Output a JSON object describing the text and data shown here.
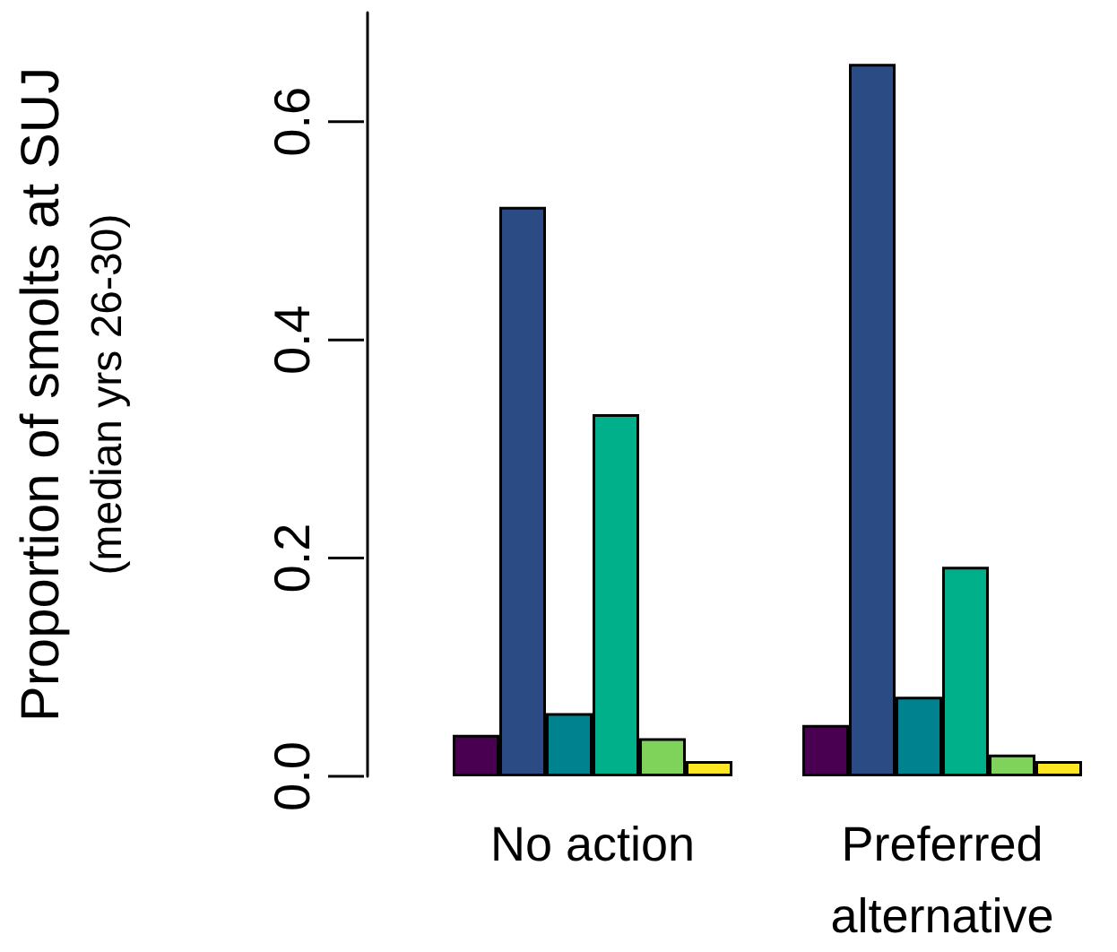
{
  "chart_data": {
    "type": "bar",
    "ylabel": "Proportion of smolts at SUJ\n(median yrs 26-30)",
    "categories": [
      "No action",
      "Preferred\nalternative"
    ],
    "series": [
      {
        "color": "#4a0050",
        "values": [
          0.038,
          0.047
        ]
      },
      {
        "color": "#2b4b84",
        "values": [
          0.522,
          0.653
        ]
      },
      {
        "color": "#00838f",
        "values": [
          0.058,
          0.073
        ]
      },
      {
        "color": "#00b08a",
        "values": [
          0.332,
          0.192
        ]
      },
      {
        "color": "#7fd35a",
        "values": [
          0.035,
          0.02
        ]
      },
      {
        "color": "#fde725",
        "values": [
          0.014,
          0.014
        ]
      }
    ],
    "ylim": [
      0,
      0.7
    ],
    "yticks": [
      {
        "value": 0,
        "label": "0.0"
      },
      {
        "value": 0.2,
        "label": "0.2"
      },
      {
        "value": 0.4,
        "label": "0.4"
      },
      {
        "value": 0.6,
        "label": "0.6"
      }
    ],
    "grid": false
  }
}
